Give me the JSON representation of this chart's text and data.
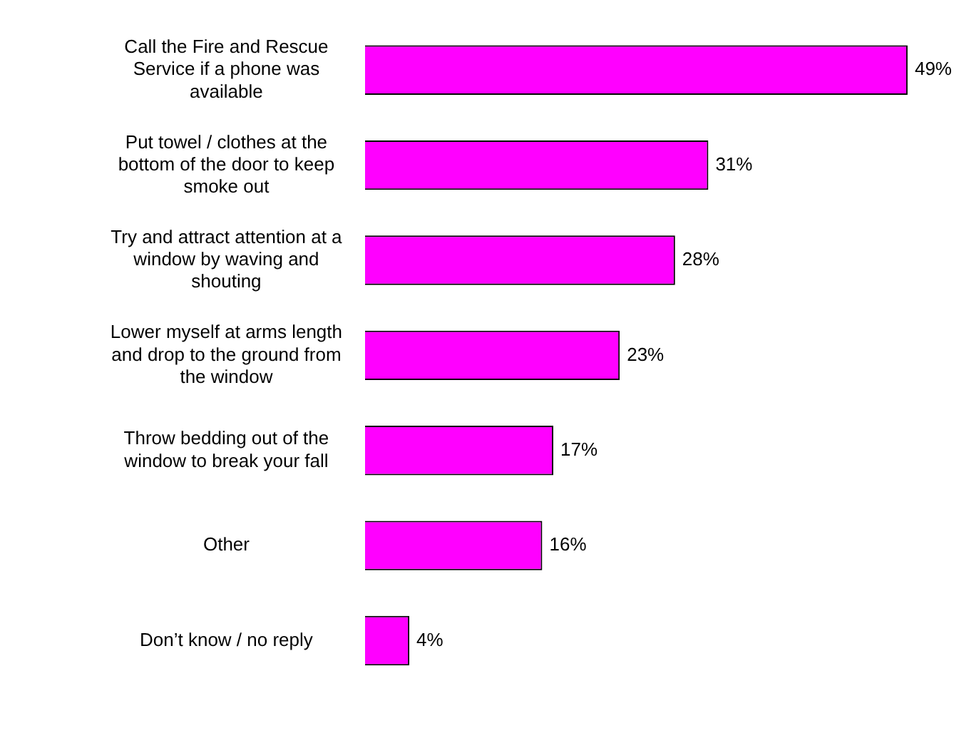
{
  "chart_data": {
    "type": "bar",
    "orientation": "horizontal",
    "categories": [
      "Call the Fire and Rescue Service if a phone was available",
      "Put towel / clothes at the bottom of the door to keep smoke out",
      "Try and attract attention at a window by waving and shouting",
      "Lower myself at arms length and drop to the ground from the window",
      "Throw bedding out of the window to break your fall",
      "Other",
      "Don’t know / no reply"
    ],
    "values": [
      49,
      31,
      28,
      23,
      17,
      16,
      4
    ],
    "value_labels": [
      "49%",
      "31%",
      "28%",
      "23%",
      "17%",
      "16%",
      "4%"
    ],
    "color": "#ff00ff"
  }
}
